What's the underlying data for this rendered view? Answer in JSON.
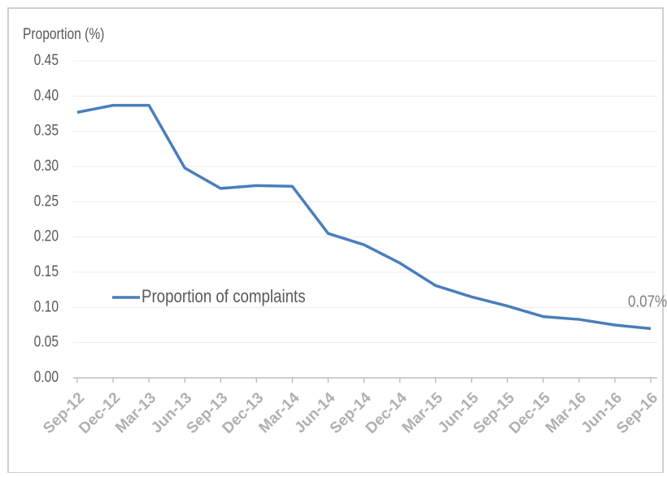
{
  "chart_data": {
    "type": "line",
    "y_axis_label": "Proportion (%)",
    "categories": [
      "Sep-12",
      "Dec-12",
      "Mar-13",
      "Jun-13",
      "Sep-13",
      "Dec-13",
      "Mar-14",
      "Jun-14",
      "Sep-14",
      "Dec-14",
      "Mar-15",
      "Jun-15",
      "Sep-15",
      "Dec-15",
      "Mar-16",
      "Jun-16",
      "Sep-16"
    ],
    "series": [
      {
        "name": "Proportion of complaints",
        "color": "#4a7ebb",
        "values": [
          0.377,
          0.387,
          0.387,
          0.298,
          0.269,
          0.273,
          0.272,
          0.205,
          0.189,
          0.163,
          0.131,
          0.115,
          0.102,
          0.087,
          0.083,
          0.075,
          0.07
        ],
        "value_labels": [
          null,
          null,
          null,
          null,
          null,
          null,
          null,
          null,
          null,
          null,
          null,
          null,
          null,
          null,
          null,
          null,
          "0.07%"
        ]
      }
    ],
    "ylim": [
      0,
      0.45
    ],
    "yticks": [
      {
        "value": 0,
        "label": "0.00"
      },
      {
        "value": 0.05,
        "label": "0.05"
      },
      {
        "value": 0.1,
        "label": "0.10"
      },
      {
        "value": 0.15,
        "label": "0.15"
      },
      {
        "value": 0.2,
        "label": "0.20"
      },
      {
        "value": 0.25,
        "label": "0.25"
      },
      {
        "value": 0.3,
        "label": "0.30"
      },
      {
        "value": 0.35,
        "label": "0.35"
      },
      {
        "value": 0.4,
        "label": "0.40"
      },
      {
        "value": 0.45,
        "label": "0.45"
      }
    ],
    "grid": true
  }
}
